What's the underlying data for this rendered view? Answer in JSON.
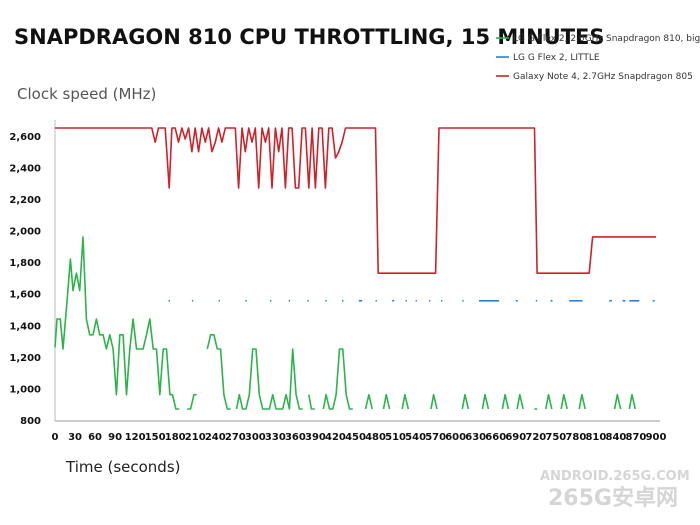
{
  "chart_data": {
    "type": "line",
    "title": "SNAPDRAGON 810 CPU THROTTLING, 15 MINUTES",
    "ylabel": "Clock speed (MHz)",
    "xlabel": "Time (seconds)",
    "xlim": [
      0,
      900
    ],
    "ylim": [
      800,
      2700
    ],
    "x_ticks": [
      0,
      30,
      60,
      90,
      120,
      150,
      180,
      210,
      240,
      270,
      300,
      330,
      360,
      390,
      420,
      450,
      480,
      510,
      540,
      570,
      600,
      630,
      660,
      690,
      720,
      750,
      780,
      810,
      840,
      870,
      900
    ],
    "y_ticks": [
      800,
      1000,
      1200,
      1400,
      1600,
      1800,
      2000,
      2200,
      2400,
      2600
    ],
    "legend_position": "top-right",
    "series": [
      {
        "name": "LG G Flex 2, 2.0GHz Snapdragon 810, big",
        "color": "#2db34a",
        "points": [
          [
            0,
            1260
          ],
          [
            3,
            1440
          ],
          [
            8,
            1440
          ],
          [
            12,
            1250
          ],
          [
            18,
            1550
          ],
          [
            23,
            1820
          ],
          [
            27,
            1620
          ],
          [
            32,
            1730
          ],
          [
            37,
            1620
          ],
          [
            42,
            1960
          ],
          [
            47,
            1440
          ],
          [
            52,
            1340
          ],
          [
            57,
            1340
          ],
          [
            62,
            1440
          ],
          [
            67,
            1340
          ],
          [
            72,
            1340
          ],
          [
            77,
            1250
          ],
          [
            82,
            1340
          ],
          [
            87,
            1250
          ],
          [
            92,
            960
          ],
          [
            97,
            1340
          ],
          [
            102,
            1340
          ],
          [
            107,
            960
          ],
          [
            112,
            1250
          ],
          [
            117,
            1440
          ],
          [
            122,
            1250
          ],
          [
            127,
            1250
          ],
          [
            132,
            1250
          ],
          [
            137,
            1340
          ],
          [
            142,
            1440
          ],
          [
            147,
            1250
          ],
          [
            152,
            1250
          ],
          [
            157,
            960
          ],
          [
            162,
            1250
          ],
          [
            167,
            1250
          ],
          [
            172,
            960
          ],
          [
            176,
            960
          ],
          [
            181,
            870
          ],
          [
            186,
            870
          ],
          [
            190,
            null
          ],
          [
            198,
            870
          ],
          [
            203,
            870
          ],
          [
            208,
            960
          ],
          [
            212,
            960
          ],
          [
            215,
            null
          ],
          [
            228,
            1250
          ],
          [
            233,
            1340
          ],
          [
            238,
            1340
          ],
          [
            243,
            1250
          ],
          [
            248,
            1250
          ],
          [
            253,
            960
          ],
          [
            258,
            870
          ],
          [
            263,
            870
          ],
          [
            267,
            null
          ],
          [
            272,
            870
          ],
          [
            276,
            960
          ],
          [
            281,
            870
          ],
          [
            286,
            870
          ],
          [
            291,
            960
          ],
          [
            296,
            1250
          ],
          [
            301,
            1250
          ],
          [
            306,
            960
          ],
          [
            311,
            870
          ],
          [
            316,
            870
          ],
          [
            321,
            870
          ],
          [
            326,
            960
          ],
          [
            331,
            870
          ],
          [
            336,
            870
          ],
          [
            341,
            870
          ],
          [
            346,
            960
          ],
          [
            351,
            870
          ],
          [
            356,
            1250
          ],
          [
            361,
            960
          ],
          [
            366,
            870
          ],
          [
            371,
            870
          ],
          [
            374,
            null
          ],
          [
            380,
            960
          ],
          [
            384,
            870
          ],
          [
            389,
            870
          ],
          [
            392,
            null
          ],
          [
            402,
            870
          ],
          [
            406,
            960
          ],
          [
            411,
            870
          ],
          [
            416,
            870
          ],
          [
            421,
            960
          ],
          [
            426,
            1250
          ],
          [
            431,
            1250
          ],
          [
            436,
            960
          ],
          [
            441,
            870
          ],
          [
            446,
            870
          ],
          [
            450,
            null
          ],
          [
            465,
            870
          ],
          [
            470,
            960
          ],
          [
            475,
            870
          ],
          [
            479,
            null
          ],
          [
            492,
            870
          ],
          [
            496,
            960
          ],
          [
            501,
            870
          ],
          [
            505,
            null
          ],
          [
            520,
            870
          ],
          [
            524,
            960
          ],
          [
            529,
            870
          ],
          [
            533,
            null
          ],
          [
            563,
            870
          ],
          [
            567,
            960
          ],
          [
            572,
            870
          ],
          [
            576,
            null
          ],
          [
            610,
            870
          ],
          [
            614,
            960
          ],
          [
            619,
            870
          ],
          [
            623,
            null
          ],
          [
            640,
            870
          ],
          [
            644,
            960
          ],
          [
            649,
            870
          ],
          [
            653,
            null
          ],
          [
            670,
            870
          ],
          [
            674,
            960
          ],
          [
            679,
            870
          ],
          [
            683,
            null
          ],
          [
            692,
            870
          ],
          [
            696,
            960
          ],
          [
            701,
            870
          ],
          [
            705,
            null
          ],
          [
            718,
            870
          ],
          [
            722,
            870
          ],
          [
            725,
            null
          ],
          [
            735,
            870
          ],
          [
            739,
            960
          ],
          [
            744,
            870
          ],
          [
            748,
            null
          ],
          [
            758,
            870
          ],
          [
            762,
            960
          ],
          [
            767,
            870
          ],
          [
            771,
            null
          ],
          [
            785,
            870
          ],
          [
            789,
            960
          ],
          [
            794,
            870
          ],
          [
            798,
            null
          ],
          [
            838,
            870
          ],
          [
            842,
            960
          ],
          [
            847,
            870
          ],
          [
            851,
            null
          ],
          [
            860,
            870
          ],
          [
            864,
            960
          ],
          [
            869,
            870
          ],
          [
            873,
            null
          ]
        ]
      },
      {
        "name": "LG G Flex 2, LITTLE",
        "color": "#2c7fd6",
        "points": [
          [
            170,
            1555
          ],
          [
            172,
            1555
          ],
          [
            173,
            null
          ],
          [
            205,
            1555
          ],
          [
            207,
            1555
          ],
          [
            208,
            null
          ],
          [
            245,
            1555
          ],
          [
            247,
            1555
          ],
          [
            248,
            null
          ],
          [
            285,
            1555
          ],
          [
            287,
            1555
          ],
          [
            288,
            null
          ],
          [
            322,
            1555
          ],
          [
            324,
            1555
          ],
          [
            325,
            null
          ],
          [
            350,
            1555
          ],
          [
            352,
            1555
          ],
          [
            353,
            null
          ],
          [
            378,
            1555
          ],
          [
            380,
            1555
          ],
          [
            381,
            null
          ],
          [
            405,
            1555
          ],
          [
            407,
            1555
          ],
          [
            408,
            null
          ],
          [
            430,
            1555
          ],
          [
            432,
            1555
          ],
          [
            433,
            null
          ],
          [
            455,
            1555
          ],
          [
            460,
            1555
          ],
          [
            461,
            null
          ],
          [
            480,
            1555
          ],
          [
            482,
            1555
          ],
          [
            483,
            null
          ],
          [
            505,
            1555
          ],
          [
            508,
            1555
          ],
          [
            509,
            null
          ],
          [
            525,
            1555
          ],
          [
            527,
            1555
          ],
          [
            528,
            null
          ],
          [
            540,
            1555
          ],
          [
            542,
            1555
          ],
          [
            543,
            null
          ],
          [
            560,
            1555
          ],
          [
            562,
            1555
          ],
          [
            563,
            null
          ],
          [
            578,
            1555
          ],
          [
            580,
            1555
          ],
          [
            581,
            null
          ],
          [
            610,
            1555
          ],
          [
            612,
            1555
          ],
          [
            613,
            null
          ],
          [
            635,
            1555
          ],
          [
            665,
            1555
          ],
          [
            666,
            null
          ],
          [
            690,
            1555
          ],
          [
            693,
            1555
          ],
          [
            694,
            null
          ],
          [
            720,
            1555
          ],
          [
            722,
            1555
          ],
          [
            723,
            null
          ],
          [
            742,
            1555
          ],
          [
            745,
            1555
          ],
          [
            746,
            null
          ],
          [
            770,
            1555
          ],
          [
            790,
            1555
          ],
          [
            791,
            null
          ],
          [
            830,
            1555
          ],
          [
            834,
            1555
          ],
          [
            835,
            null
          ],
          [
            850,
            1555
          ],
          [
            854,
            1555
          ],
          [
            855,
            null
          ],
          [
            860,
            1555
          ],
          [
            875,
            1555
          ],
          [
            876,
            null
          ],
          [
            895,
            1555
          ],
          [
            898,
            1555
          ]
        ]
      },
      {
        "name": "Galaxy Note 4, 2.7GHz Snapdragon 805",
        "color": "#cc2229",
        "points": [
          [
            0,
            2650
          ],
          [
            145,
            2650
          ],
          [
            150,
            2560
          ],
          [
            155,
            2650
          ],
          [
            165,
            2650
          ],
          [
            171,
            2270
          ],
          [
            175,
            2650
          ],
          [
            180,
            2650
          ],
          [
            185,
            2560
          ],
          [
            190,
            2650
          ],
          [
            195,
            2580
          ],
          [
            200,
            2650
          ],
          [
            205,
            2500
          ],
          [
            210,
            2650
          ],
          [
            215,
            2500
          ],
          [
            220,
            2650
          ],
          [
            225,
            2560
          ],
          [
            230,
            2650
          ],
          [
            235,
            2500
          ],
          [
            240,
            2560
          ],
          [
            245,
            2650
          ],
          [
            250,
            2560
          ],
          [
            255,
            2650
          ],
          [
            260,
            2650
          ],
          [
            270,
            2650
          ],
          [
            275,
            2270
          ],
          [
            280,
            2650
          ],
          [
            285,
            2500
          ],
          [
            290,
            2650
          ],
          [
            295,
            2560
          ],
          [
            300,
            2650
          ],
          [
            305,
            2270
          ],
          [
            310,
            2650
          ],
          [
            315,
            2560
          ],
          [
            320,
            2650
          ],
          [
            325,
            2270
          ],
          [
            330,
            2650
          ],
          [
            335,
            2500
          ],
          [
            340,
            2650
          ],
          [
            345,
            2270
          ],
          [
            350,
            2650
          ],
          [
            355,
            2650
          ],
          [
            360,
            2270
          ],
          [
            365,
            2270
          ],
          [
            370,
            2650
          ],
          [
            375,
            2650
          ],
          [
            380,
            2270
          ],
          [
            385,
            2650
          ],
          [
            390,
            2270
          ],
          [
            395,
            2650
          ],
          [
            400,
            2650
          ],
          [
            405,
            2270
          ],
          [
            410,
            2650
          ],
          [
            415,
            2650
          ],
          [
            420,
            2460
          ],
          [
            425,
            2500
          ],
          [
            430,
            2560
          ],
          [
            435,
            2650
          ],
          [
            480,
            2650
          ],
          [
            484,
            1730
          ],
          [
            570,
            1730
          ],
          [
            575,
            2650
          ],
          [
            718,
            2650
          ],
          [
            722,
            1730
          ],
          [
            800,
            1730
          ],
          [
            805,
            1960
          ],
          [
            900,
            1960
          ]
        ]
      }
    ]
  },
  "watermark": {
    "line1": "ANDROID.265G.COM",
    "line2": "265G",
    "line3": "安卓网"
  }
}
